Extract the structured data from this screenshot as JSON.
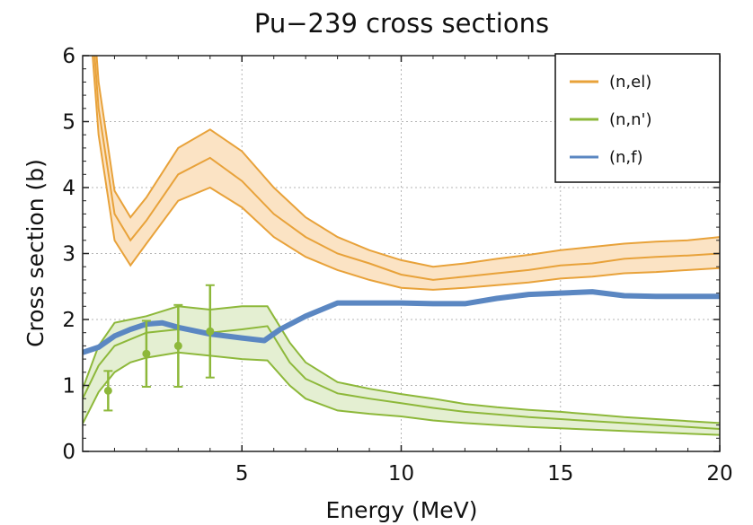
{
  "chart_data": {
    "type": "line",
    "title": "Pu−239 cross sections",
    "xlabel": "Energy (MeV)",
    "ylabel": "Cross section (b)",
    "xlim": [
      0,
      20
    ],
    "ylim": [
      0,
      6
    ],
    "x_ticks": [
      5,
      10,
      15,
      20
    ],
    "y_ticks": [
      0,
      1,
      2,
      3,
      4,
      5,
      6
    ],
    "grid": true,
    "legend_position": "top-right",
    "series": [
      {
        "name": "(n,el)",
        "color": "#e8a23a",
        "fill_color": "#fbe3c4",
        "x": [
          0.25,
          0.5,
          1.0,
          1.5,
          2.0,
          3.0,
          4.0,
          5.0,
          6.0,
          7.0,
          8.0,
          9.0,
          10.0,
          11.0,
          12.0,
          13.0,
          14.0,
          15.0,
          16.0,
          17.0,
          18.0,
          19.0,
          20.0
        ],
        "center": [
          6.8,
          5.2,
          3.6,
          3.2,
          3.5,
          4.2,
          4.45,
          4.1,
          3.6,
          3.25,
          3.0,
          2.85,
          2.68,
          2.6,
          2.65,
          2.7,
          2.75,
          2.82,
          2.85,
          2.92,
          2.95,
          2.97,
          3.0
        ],
        "upper": [
          7.2,
          5.6,
          3.95,
          3.55,
          3.85,
          4.6,
          4.88,
          4.55,
          4.0,
          3.55,
          3.25,
          3.05,
          2.9,
          2.8,
          2.85,
          2.92,
          2.98,
          3.05,
          3.1,
          3.15,
          3.18,
          3.2,
          3.25
        ],
        "lower": [
          6.4,
          4.8,
          3.2,
          2.82,
          3.15,
          3.8,
          4.0,
          3.7,
          3.25,
          2.95,
          2.75,
          2.6,
          2.48,
          2.45,
          2.48,
          2.52,
          2.56,
          2.62,
          2.65,
          2.7,
          2.72,
          2.75,
          2.78
        ]
      },
      {
        "name": "(n,n')",
        "color": "#8db83a",
        "fill_color": "#e4efd2",
        "x": [
          0,
          0.5,
          1.0,
          1.5,
          2.0,
          3.0,
          4.0,
          5.0,
          5.8,
          6.5,
          7.0,
          8.0,
          9.0,
          10.0,
          11.0,
          12.0,
          13.0,
          14.0,
          15.0,
          16.0,
          17.0,
          18.0,
          19.0,
          20.0
        ],
        "center": [
          0.8,
          1.3,
          1.6,
          1.7,
          1.8,
          1.85,
          1.8,
          1.85,
          1.9,
          1.35,
          1.1,
          0.88,
          0.8,
          0.73,
          0.66,
          0.6,
          0.56,
          0.52,
          0.49,
          0.46,
          0.43,
          0.4,
          0.37,
          0.34
        ],
        "upper": [
          0.95,
          1.6,
          1.95,
          2.0,
          2.05,
          2.2,
          2.15,
          2.2,
          2.2,
          1.65,
          1.35,
          1.05,
          0.95,
          0.87,
          0.8,
          0.72,
          0.67,
          0.63,
          0.6,
          0.56,
          0.52,
          0.49,
          0.46,
          0.43
        ],
        "lower": [
          0.42,
          0.9,
          1.2,
          1.35,
          1.42,
          1.5,
          1.45,
          1.4,
          1.38,
          1.0,
          0.8,
          0.62,
          0.57,
          0.53,
          0.47,
          0.43,
          0.4,
          0.37,
          0.35,
          0.33,
          0.31,
          0.29,
          0.27,
          0.25
        ],
        "markers": [
          {
            "x": 0.8,
            "y": 0.92,
            "err": 0.3
          },
          {
            "x": 2.0,
            "y": 1.48,
            "err": 0.5
          },
          {
            "x": 3.0,
            "y": 1.6,
            "err": 0.62
          },
          {
            "x": 4.0,
            "y": 1.82,
            "err": 0.7
          }
        ]
      },
      {
        "name": "(n,f)",
        "color": "#5b87c2",
        "x": [
          0,
          0.5,
          1.0,
          1.5,
          2.0,
          2.5,
          3.0,
          4.0,
          5.0,
          5.7,
          6.2,
          7.0,
          8.0,
          9.0,
          10.0,
          11.0,
          12.0,
          13.0,
          14.0,
          15.0,
          16.0,
          17.0,
          18.0,
          19.0,
          20.0
        ],
        "y": [
          1.5,
          1.58,
          1.75,
          1.85,
          1.93,
          1.95,
          1.88,
          1.78,
          1.72,
          1.68,
          1.85,
          2.05,
          2.25,
          2.25,
          2.25,
          2.24,
          2.24,
          2.32,
          2.38,
          2.4,
          2.42,
          2.36,
          2.35,
          2.35,
          2.35
        ]
      }
    ]
  }
}
